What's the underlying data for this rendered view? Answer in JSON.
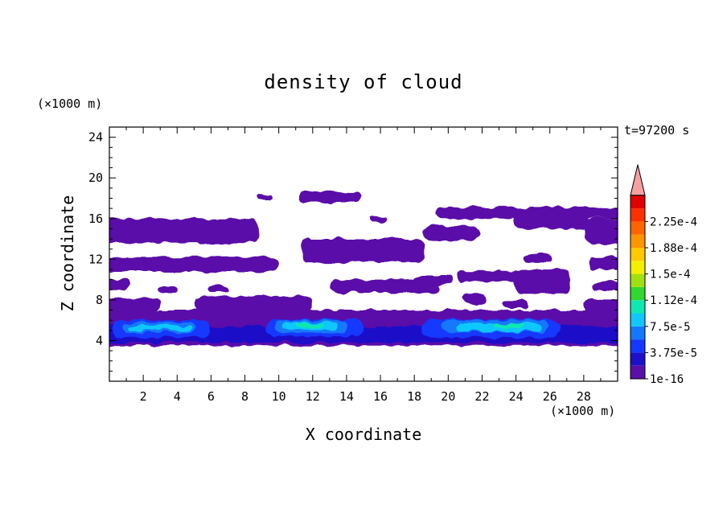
{
  "chart_data": {
    "type": "heatmap",
    "title": "density of cloud",
    "xlabel": "X coordinate",
    "ylabel": "Z coordinate",
    "x_unit": "(×1000 m)",
    "y_unit": "(×1000 m)",
    "time_label": "t=97200 s",
    "xlim": [
      0,
      30
    ],
    "ylim": [
      0,
      25
    ],
    "x_ticks": [
      2,
      4,
      6,
      8,
      10,
      12,
      14,
      16,
      18,
      20,
      22,
      24,
      26,
      28
    ],
    "y_ticks": [
      4,
      8,
      12,
      16,
      20,
      24
    ],
    "colorbar": {
      "labels": [
        "1e-16",
        "3.75e-5",
        "7.5e-5",
        "1.12e-4",
        "1.5e-4",
        "1.88e-4",
        "2.25e-4"
      ],
      "colors": [
        "#5a10a8",
        "#1e10c8",
        "#1438ff",
        "#1478ff",
        "#10c8ff",
        "#10e8b0",
        "#30d830",
        "#a0e010",
        "#f0f000",
        "#ffc800",
        "#ff9600",
        "#ff6400",
        "#ff3000",
        "#e00000"
      ],
      "extend_color": "#f4a0a0"
    },
    "regions": [
      {
        "x": [
          8.8,
          9.6
        ],
        "z": [
          17.8,
          18.4
        ],
        "level": 0
      },
      {
        "x": [
          11.2,
          14.8
        ],
        "z": [
          17.6,
          18.6
        ],
        "level": 0
      },
      {
        "x": [
          15.4,
          16.4
        ],
        "z": [
          15.6,
          16.2
        ],
        "level": 0
      },
      {
        "x": [
          19.3,
          30
        ],
        "z": [
          16.0,
          17.1
        ],
        "level": 0
      },
      {
        "x": [
          23.8,
          28.3
        ],
        "z": [
          15.0,
          16.4
        ],
        "level": 0
      },
      {
        "x": [
          0,
          8.8
        ],
        "z": [
          13.6,
          16.0
        ],
        "level": 0
      },
      {
        "x": [
          18.6,
          21.8
        ],
        "z": [
          13.8,
          15.3
        ],
        "level": 0
      },
      {
        "x": [
          28.1,
          30
        ],
        "z": [
          13.5,
          16.0
        ],
        "level": 0
      },
      {
        "x": [
          11.3,
          18.6
        ],
        "z": [
          11.7,
          14.0
        ],
        "level": 0
      },
      {
        "x": [
          0,
          10.0
        ],
        "z": [
          10.8,
          12.2
        ],
        "level": 0
      },
      {
        "x": [
          24.5,
          26.1
        ],
        "z": [
          11.8,
          12.5
        ],
        "level": 0
      },
      {
        "x": [
          0,
          1.2
        ],
        "z": [
          9.0,
          10.0
        ],
        "level": 0
      },
      {
        "x": [
          13.0,
          19.5
        ],
        "z": [
          8.7,
          10.0
        ],
        "level": 0
      },
      {
        "x": [
          17.9,
          20.2
        ],
        "z": [
          9.6,
          10.4
        ],
        "level": 0
      },
      {
        "x": [
          20.6,
          24.4
        ],
        "z": [
          9.8,
          10.9
        ],
        "level": 0
      },
      {
        "x": [
          23.9,
          27.2
        ],
        "z": [
          8.6,
          11.0
        ],
        "level": 0
      },
      {
        "x": [
          28.3,
          30
        ],
        "z": [
          11.0,
          12.2
        ],
        "level": 0
      },
      {
        "x": [
          28.5,
          30
        ],
        "z": [
          8.9,
          9.8
        ],
        "level": 0
      },
      {
        "x": [
          2.9,
          4.0
        ],
        "z": [
          8.7,
          9.3
        ],
        "level": 0
      },
      {
        "x": [
          5.9,
          7.0
        ],
        "z": [
          8.7,
          9.3
        ],
        "level": 0
      },
      {
        "x": [
          0,
          3.0
        ],
        "z": [
          6.8,
          8.2
        ],
        "level": 0
      },
      {
        "x": [
          5.0,
          12.0
        ],
        "z": [
          6.8,
          8.4
        ],
        "level": 0
      },
      {
        "x": [
          20.8,
          22.2
        ],
        "z": [
          7.6,
          8.6
        ],
        "level": 0
      },
      {
        "x": [
          23.3,
          24.8
        ],
        "z": [
          7.2,
          8.0
        ],
        "level": 0
      },
      {
        "x": [
          28.0,
          30
        ],
        "z": [
          6.5,
          8.0
        ],
        "level": 0
      },
      {
        "x": [
          0,
          30
        ],
        "z": [
          3.5,
          7.0
        ],
        "level": 0
      },
      {
        "x": [
          0,
          30
        ],
        "z": [
          3.8,
          5.4
        ],
        "level": 1
      },
      {
        "x": [
          0.2,
          6.0
        ],
        "z": [
          4.3,
          6.0
        ],
        "level": 2
      },
      {
        "x": [
          9.3,
          15.0
        ],
        "z": [
          4.4,
          6.1
        ],
        "level": 2
      },
      {
        "x": [
          18.5,
          26.5
        ],
        "z": [
          4.3,
          6.1
        ],
        "level": 2
      },
      {
        "x": [
          0.8,
          5.0
        ],
        "z": [
          4.8,
          5.8
        ],
        "level": 3
      },
      {
        "x": [
          9.8,
          14.0
        ],
        "z": [
          4.8,
          6.0
        ],
        "level": 3
      },
      {
        "x": [
          19.6,
          25.9
        ],
        "z": [
          4.8,
          6.0
        ],
        "level": 3
      },
      {
        "x": [
          1.2,
          4.8
        ],
        "z": [
          5.0,
          5.5
        ],
        "level": 4
      },
      {
        "x": [
          10.2,
          13.5
        ],
        "z": [
          5.1,
          5.8
        ],
        "level": 4
      },
      {
        "x": [
          20.5,
          25.5
        ],
        "z": [
          4.9,
          5.7
        ],
        "level": 4
      },
      {
        "x": [
          11.0,
          12.6
        ],
        "z": [
          5.3,
          5.7
        ],
        "level": 5
      },
      {
        "x": [
          22.6,
          24.4
        ],
        "z": [
          5.3,
          5.7
        ],
        "level": 5
      }
    ]
  }
}
